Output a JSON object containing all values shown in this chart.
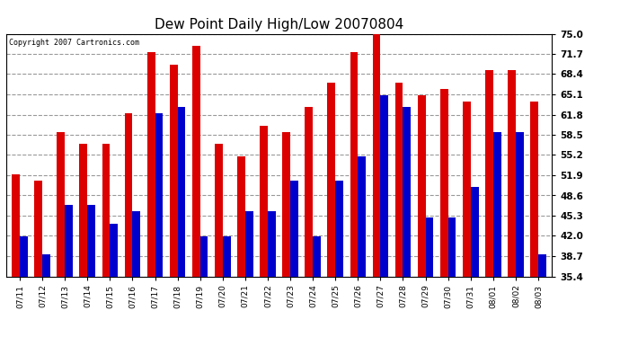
{
  "title": "Dew Point Daily High/Low 20070804",
  "copyright": "Copyright 2007 Cartronics.com",
  "dates": [
    "07/11",
    "07/12",
    "07/13",
    "07/14",
    "07/15",
    "07/16",
    "07/17",
    "07/18",
    "07/19",
    "07/20",
    "07/21",
    "07/22",
    "07/23",
    "07/24",
    "07/25",
    "07/26",
    "07/27",
    "07/28",
    "07/29",
    "07/30",
    "07/31",
    "08/01",
    "08/02",
    "08/03"
  ],
  "highs": [
    52,
    51,
    59,
    57,
    57,
    62,
    72,
    70,
    73,
    57,
    55,
    60,
    59,
    63,
    67,
    72,
    76,
    67,
    65,
    66,
    64,
    69,
    69,
    64
  ],
  "lows": [
    42,
    39,
    47,
    47,
    44,
    46,
    62,
    63,
    42,
    42,
    46,
    46,
    51,
    42,
    51,
    55,
    65,
    63,
    45,
    45,
    50,
    59,
    59,
    39
  ],
  "high_color": "#dd0000",
  "low_color": "#0000cc",
  "background_color": "#ffffff",
  "plot_bg_color": "#ffffff",
  "grid_color": "#999999",
  "yticks": [
    35.4,
    38.7,
    42.0,
    45.3,
    48.6,
    51.9,
    55.2,
    58.5,
    61.8,
    65.1,
    68.4,
    71.7,
    75.0
  ],
  "ylim": [
    35.4,
    75.0
  ],
  "bar_width": 0.35
}
